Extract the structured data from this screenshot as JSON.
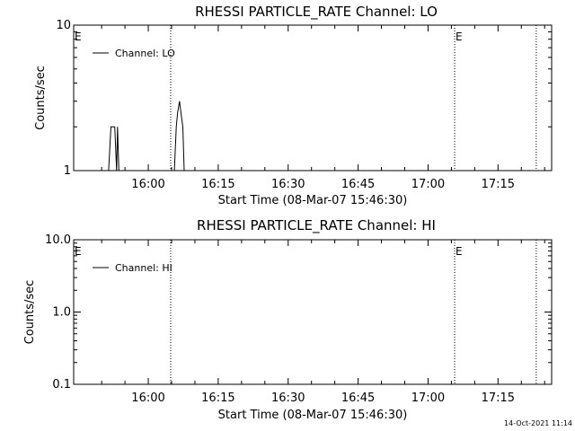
{
  "chart_data": [
    {
      "type": "line",
      "title": "RHESSI PARTICLE_RATE Channel: LO",
      "xlabel": "Start Time (08-Mar-07 15:46:30)",
      "ylabel": "Counts/sec",
      "y_scale": "log",
      "ylim": [
        1,
        10
      ],
      "xlim_minutes": [
        -16.0,
        86.5
      ],
      "y_ticks": [
        {
          "value": 1,
          "label": "1"
        },
        {
          "value": 10,
          "label": "10"
        }
      ],
      "x_ticks": [
        {
          "value": 0,
          "label": "16:00"
        },
        {
          "value": 15,
          "label": "16:15"
        },
        {
          "value": 30,
          "label": "16:30"
        },
        {
          "value": 45,
          "label": "16:45"
        },
        {
          "value": 60,
          "label": "17:00"
        },
        {
          "value": 75,
          "label": "17:15"
        }
      ],
      "legend": {
        "label": "Channel: LO",
        "position": "top-left"
      },
      "markers": [
        {
          "x": -16.0,
          "label": "E"
        },
        {
          "x": 65.7,
          "label": "E"
        }
      ],
      "vlines": [
        4.8,
        65.7,
        83.2
      ],
      "series": [
        {
          "name": "Channel: LO",
          "points": [
            [
              -8.5,
              1
            ],
            [
              -8.0,
              2
            ],
            [
              -7.2,
              2
            ],
            [
              -6.8,
              1
            ],
            [
              -6.6,
              2
            ],
            [
              -6.3,
              1
            ],
            [
              5.6,
              1
            ],
            [
              6.0,
              2
            ],
            [
              6.3,
              2.5
            ],
            [
              6.7,
              3
            ],
            [
              7.0,
              2.5
            ],
            [
              7.4,
              2
            ],
            [
              7.7,
              1
            ]
          ]
        }
      ]
    },
    {
      "type": "line",
      "title": "RHESSI PARTICLE_RATE Channel: HI",
      "xlabel": "Start Time (08-Mar-07 15:46:30)",
      "ylabel": "Counts/sec",
      "y_scale": "log",
      "ylim": [
        0.1,
        10
      ],
      "xlim_minutes": [
        -16.0,
        86.5
      ],
      "y_ticks": [
        {
          "value": 0.1,
          "label": "0.1"
        },
        {
          "value": 1,
          "label": "1.0"
        },
        {
          "value": 10,
          "label": "10.0"
        }
      ],
      "x_ticks": [
        {
          "value": 0,
          "label": "16:00"
        },
        {
          "value": 15,
          "label": "16:15"
        },
        {
          "value": 30,
          "label": "16:30"
        },
        {
          "value": 45,
          "label": "16:45"
        },
        {
          "value": 60,
          "label": "17:00"
        },
        {
          "value": 75,
          "label": "17:15"
        }
      ],
      "legend": {
        "label": "Channel: HI",
        "position": "top-left"
      },
      "markers": [
        {
          "x": -16.0,
          "label": "E"
        },
        {
          "x": 65.7,
          "label": "E"
        }
      ],
      "vlines": [
        4.8,
        65.7,
        83.2
      ],
      "series": [
        {
          "name": "Channel: HI",
          "points": []
        }
      ]
    }
  ],
  "footer": {
    "timestamp": "14-Oct-2021 11:14"
  }
}
